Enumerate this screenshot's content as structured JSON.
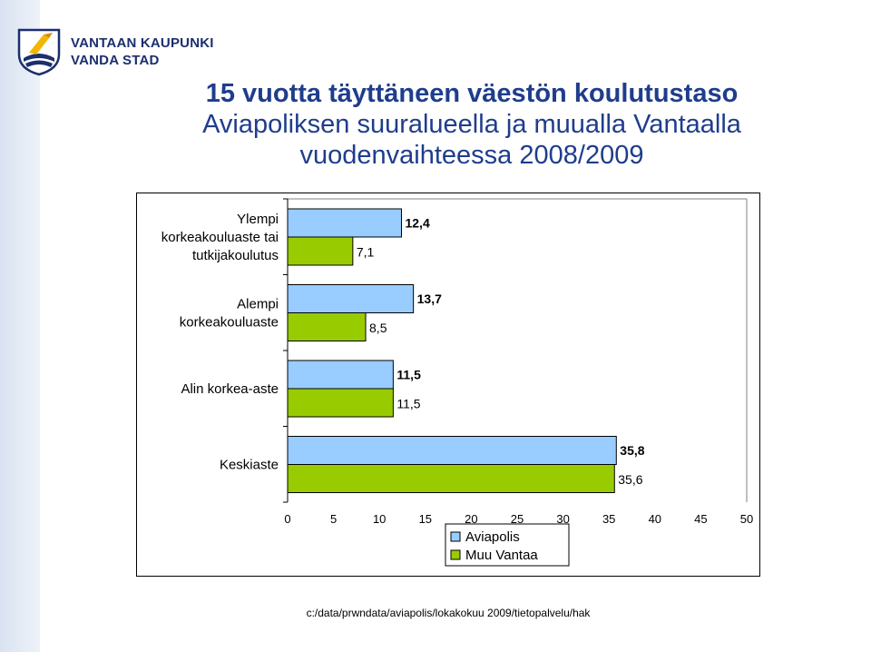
{
  "header": {
    "logo_line1": "VANTAAN KAUPUNKI",
    "logo_line2": "VANDA STAD",
    "logo_icon": "vantaa-coat-of-arms-icon"
  },
  "title": {
    "line1": "15 vuotta täyttäneen väestön koulutustaso",
    "line2": "Aviapoliksen suuralueella ja muualla Vantaalla",
    "line3": "vuodenvaihteessa 2008/2009"
  },
  "chart_data": {
    "type": "bar",
    "orientation": "horizontal",
    "categories": [
      [
        "Ylempi",
        "korkeakouluaste tai",
        "tutkijakoulutus"
      ],
      [
        "Alempi",
        "korkeakouluaste"
      ],
      [
        "Alin korkea-aste"
      ],
      [
        "Keskiaste"
      ]
    ],
    "series": [
      {
        "name": "Aviapolis",
        "color": "#99ccff",
        "values": [
          12.4,
          13.7,
          11.5,
          35.8
        ],
        "labels": [
          "12,4",
          "13,7",
          "11,5",
          "35,8"
        ]
      },
      {
        "name": "Muu Vantaa",
        "color": "#99cc00",
        "values": [
          7.1,
          8.5,
          11.5,
          35.6
        ],
        "labels": [
          "7,1",
          "8,5",
          "11,5",
          "35,6"
        ]
      }
    ],
    "xlim": [
      0,
      50
    ],
    "xticks": [
      "0",
      "5",
      "10",
      "15",
      "20",
      "25",
      "30",
      "35",
      "40",
      "45",
      "50"
    ],
    "grid": false,
    "legend_position": "bottom-center"
  },
  "footer": {
    "path": "c:/data/prwndata/aviapolis/lokakokuu 2009/tietopalvelu/hak"
  }
}
